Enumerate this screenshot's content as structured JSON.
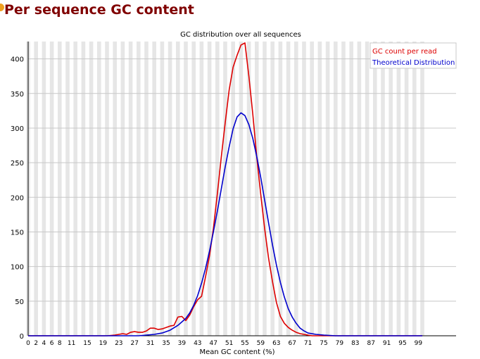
{
  "page": {
    "title": "Per sequence GC content"
  },
  "colors": {
    "title": "#800000",
    "series_read": "#dd0000",
    "series_theory": "#0000cc",
    "band": "#e6e6e6",
    "grid": "#c8c8c8",
    "status_badge": "#f0a020"
  },
  "chart_data": {
    "type": "line",
    "title": "GC distribution over all sequences",
    "xlabel": "Mean GC content (%)",
    "ylabel": "",
    "xlim": [
      0,
      100
    ],
    "ylim": [
      0,
      425
    ],
    "x_ticks": [
      0,
      2,
      4,
      6,
      8,
      11,
      15,
      19,
      23,
      27,
      31,
      35,
      39,
      43,
      47,
      51,
      55,
      59,
      63,
      67,
      71,
      75,
      79,
      83,
      87,
      91,
      95,
      99
    ],
    "y_ticks": [
      0,
      50,
      100,
      150,
      200,
      250,
      300,
      350,
      400
    ],
    "grid": true,
    "alternating_bands": true,
    "legend_position": "top-right",
    "series": [
      {
        "name": "GC count per read",
        "color": "#dd0000",
        "points": [
          [
            0,
            0
          ],
          [
            20,
            0
          ],
          [
            22,
            1
          ],
          [
            23,
            2
          ],
          [
            24,
            3
          ],
          [
            25,
            2
          ],
          [
            26,
            5
          ],
          [
            27,
            6
          ],
          [
            28,
            5
          ],
          [
            29,
            5
          ],
          [
            30,
            7
          ],
          [
            31,
            11
          ],
          [
            32,
            11
          ],
          [
            33,
            9
          ],
          [
            34,
            10
          ],
          [
            35,
            12
          ],
          [
            36,
            14
          ],
          [
            37,
            15
          ],
          [
            38,
            27
          ],
          [
            39,
            28
          ],
          [
            40,
            22
          ],
          [
            41,
            30
          ],
          [
            42,
            42
          ],
          [
            43,
            52
          ],
          [
            44,
            57
          ],
          [
            45,
            85
          ],
          [
            46,
            115
          ],
          [
            47,
            155
          ],
          [
            48,
            205
          ],
          [
            49,
            258
          ],
          [
            50,
            308
          ],
          [
            51,
            355
          ],
          [
            52,
            388
          ],
          [
            53,
            405
          ],
          [
            54,
            420
          ],
          [
            55,
            423
          ],
          [
            56,
            375
          ],
          [
            57,
            320
          ],
          [
            58,
            258
          ],
          [
            59,
            205
          ],
          [
            60,
            155
          ],
          [
            61,
            112
          ],
          [
            62,
            78
          ],
          [
            63,
            48
          ],
          [
            64,
            28
          ],
          [
            65,
            18
          ],
          [
            66,
            12
          ],
          [
            67,
            8
          ],
          [
            68,
            5
          ],
          [
            69,
            3
          ],
          [
            70,
            2
          ],
          [
            71,
            1
          ],
          [
            72,
            0
          ],
          [
            100,
            0
          ]
        ]
      },
      {
        "name": "Theoretical Distribution",
        "color": "#0000cc",
        "points": [
          [
            0,
            0
          ],
          [
            28,
            0
          ],
          [
            30,
            1
          ],
          [
            32,
            2
          ],
          [
            34,
            4
          ],
          [
            36,
            8
          ],
          [
            38,
            15
          ],
          [
            40,
            25
          ],
          [
            41,
            33
          ],
          [
            42,
            44
          ],
          [
            43,
            58
          ],
          [
            44,
            76
          ],
          [
            45,
            97
          ],
          [
            46,
            122
          ],
          [
            47,
            150
          ],
          [
            48,
            180
          ],
          [
            49,
            212
          ],
          [
            50,
            244
          ],
          [
            51,
            273
          ],
          [
            52,
            299
          ],
          [
            53,
            316
          ],
          [
            54,
            322
          ],
          [
            55,
            318
          ],
          [
            56,
            305
          ],
          [
            57,
            285
          ],
          [
            58,
            259
          ],
          [
            59,
            229
          ],
          [
            60,
            196
          ],
          [
            61,
            163
          ],
          [
            62,
            131
          ],
          [
            63,
            102
          ],
          [
            64,
            77
          ],
          [
            65,
            56
          ],
          [
            66,
            39
          ],
          [
            67,
            27
          ],
          [
            68,
            18
          ],
          [
            69,
            11
          ],
          [
            70,
            7
          ],
          [
            71,
            4
          ],
          [
            73,
            2
          ],
          [
            75,
            1
          ],
          [
            78,
            0
          ],
          [
            100,
            0
          ]
        ]
      }
    ]
  }
}
